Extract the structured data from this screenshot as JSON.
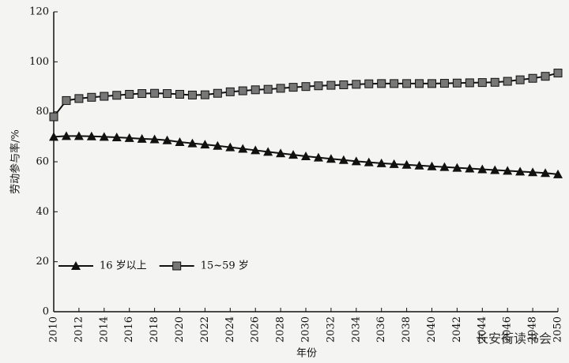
{
  "chart_data": {
    "type": "line",
    "ylabel": "劳动参与率/%",
    "xlabel": "年份",
    "x": [
      2010,
      2011,
      2012,
      2013,
      2014,
      2015,
      2016,
      2017,
      2018,
      2019,
      2020,
      2021,
      2022,
      2023,
      2024,
      2025,
      2026,
      2027,
      2028,
      2029,
      2030,
      2031,
      2032,
      2033,
      2034,
      2035,
      2036,
      2037,
      2038,
      2039,
      2040,
      2041,
      2042,
      2043,
      2044,
      2045,
      2046,
      2047,
      2048,
      2049,
      2050
    ],
    "series": [
      {
        "name": "16 岁以上",
        "color": "#111111",
        "marker": "triangle",
        "values": [
          70,
          70.3,
          70.3,
          70.2,
          70,
          69.8,
          69.5,
          69.2,
          69,
          68.6,
          67.9,
          67.4,
          66.9,
          66.4,
          65.8,
          65.2,
          64.6,
          64,
          63.4,
          62.8,
          62.2,
          61.7,
          61.2,
          60.7,
          60.2,
          59.8,
          59.4,
          59.1,
          58.8,
          58.5,
          58.2,
          57.9,
          57.6,
          57.3,
          57,
          56.7,
          56.4,
          56.1,
          55.8,
          55.5,
          55
        ]
      },
      {
        "name": "15~59 岁",
        "color": "#111111",
        "marker": "square",
        "values": [
          78,
          84.5,
          85.3,
          85.8,
          86.2,
          86.6,
          87,
          87.3,
          87.4,
          87.3,
          87,
          86.7,
          86.8,
          87.4,
          88,
          88.4,
          88.8,
          89,
          89.4,
          89.8,
          90.1,
          90.4,
          90.6,
          90.8,
          91,
          91.2,
          91.3,
          91.3,
          91.3,
          91.3,
          91.3,
          91.4,
          91.5,
          91.6,
          91.7,
          91.8,
          92.2,
          92.8,
          93.4,
          94.2,
          95.5
        ]
      }
    ],
    "xlim": [
      2010,
      2050
    ],
    "xticks": [
      2010,
      2012,
      2014,
      2016,
      2018,
      2020,
      2022,
      2024,
      2026,
      2028,
      2030,
      2032,
      2034,
      2036,
      2038,
      2040,
      2042,
      2044,
      2046,
      2048,
      2050
    ],
    "ylim": [
      0,
      120
    ],
    "yticks": [
      0,
      20,
      40,
      60,
      80,
      100,
      120
    ],
    "grid": false,
    "legend": "lower left",
    "watermark": "长安街读书会"
  }
}
